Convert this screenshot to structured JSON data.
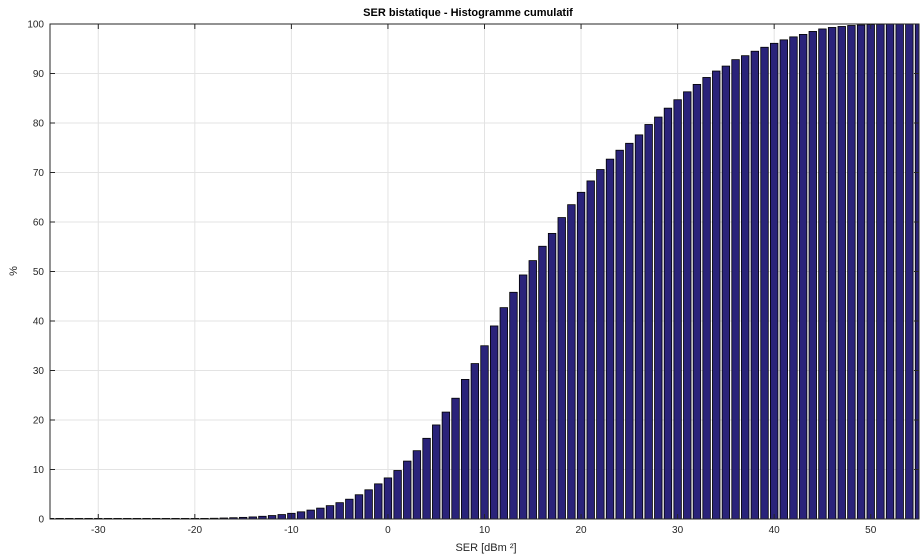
{
  "chart_data": {
    "type": "bar",
    "title": "SER bistatique - Histogramme cumulatif",
    "xlabel": "SER [dBm ²]",
    "ylabel": "%",
    "xlim": [
      -35,
      55
    ],
    "ylim": [
      0,
      100
    ],
    "grid": true,
    "bar_color": "#2a237a",
    "bar_edge_color": "#000000",
    "x_ticks": [
      -30,
      -20,
      -10,
      0,
      10,
      20,
      30,
      40,
      50
    ],
    "y_ticks": [
      0,
      10,
      20,
      30,
      40,
      50,
      60,
      70,
      80,
      90,
      100
    ],
    "x": [
      -35,
      -34,
      -33,
      -32,
      -31,
      -30,
      -29,
      -28,
      -27,
      -26,
      -25,
      -24,
      -23,
      -22,
      -21,
      -20,
      -19,
      -18,
      -17,
      -16,
      -15,
      -14,
      -13,
      -12,
      -11,
      -10,
      -9,
      -8,
      -7,
      -6,
      -5,
      -4,
      -3,
      -2,
      -1,
      0,
      1,
      2,
      3,
      4,
      5,
      6,
      7,
      8,
      9,
      10,
      11,
      12,
      13,
      14,
      15,
      16,
      17,
      18,
      19,
      20,
      21,
      22,
      23,
      24,
      25,
      26,
      27,
      28,
      29,
      30,
      31,
      32,
      33,
      34,
      35,
      36,
      37,
      38,
      39,
      40,
      41,
      42,
      43,
      44,
      45,
      46,
      47,
      48,
      49,
      50,
      51,
      52,
      53,
      54,
      55
    ],
    "values": [
      0,
      0,
      0,
      0,
      0,
      0,
      0,
      0,
      0,
      0,
      0.02,
      0.03,
      0.04,
      0.05,
      0.07,
      0.09,
      0.12,
      0.15,
      0.2,
      0.26,
      0.33,
      0.42,
      0.55,
      0.7,
      0.9,
      1.15,
      1.45,
      1.8,
      2.2,
      2.7,
      3.3,
      4.0,
      4.9,
      5.9,
      7.1,
      8.3,
      9.8,
      11.7,
      13.8,
      16.3,
      19.0,
      21.6,
      24.4,
      28.2,
      31.4,
      35.0,
      39.0,
      42.7,
      45.8,
      49.3,
      52.2,
      55.1,
      57.7,
      60.9,
      63.5,
      66.0,
      68.3,
      70.6,
      72.7,
      74.5,
      75.9,
      77.6,
      79.7,
      81.2,
      83.0,
      84.7,
      86.3,
      87.8,
      89.2,
      90.5,
      91.5,
      92.8,
      93.6,
      94.5,
      95.3,
      96.1,
      96.8,
      97.4,
      97.9,
      98.5,
      99.0,
      99.3,
      99.5,
      99.7,
      99.8,
      99.9,
      99.95,
      100,
      100,
      100,
      100
    ]
  }
}
